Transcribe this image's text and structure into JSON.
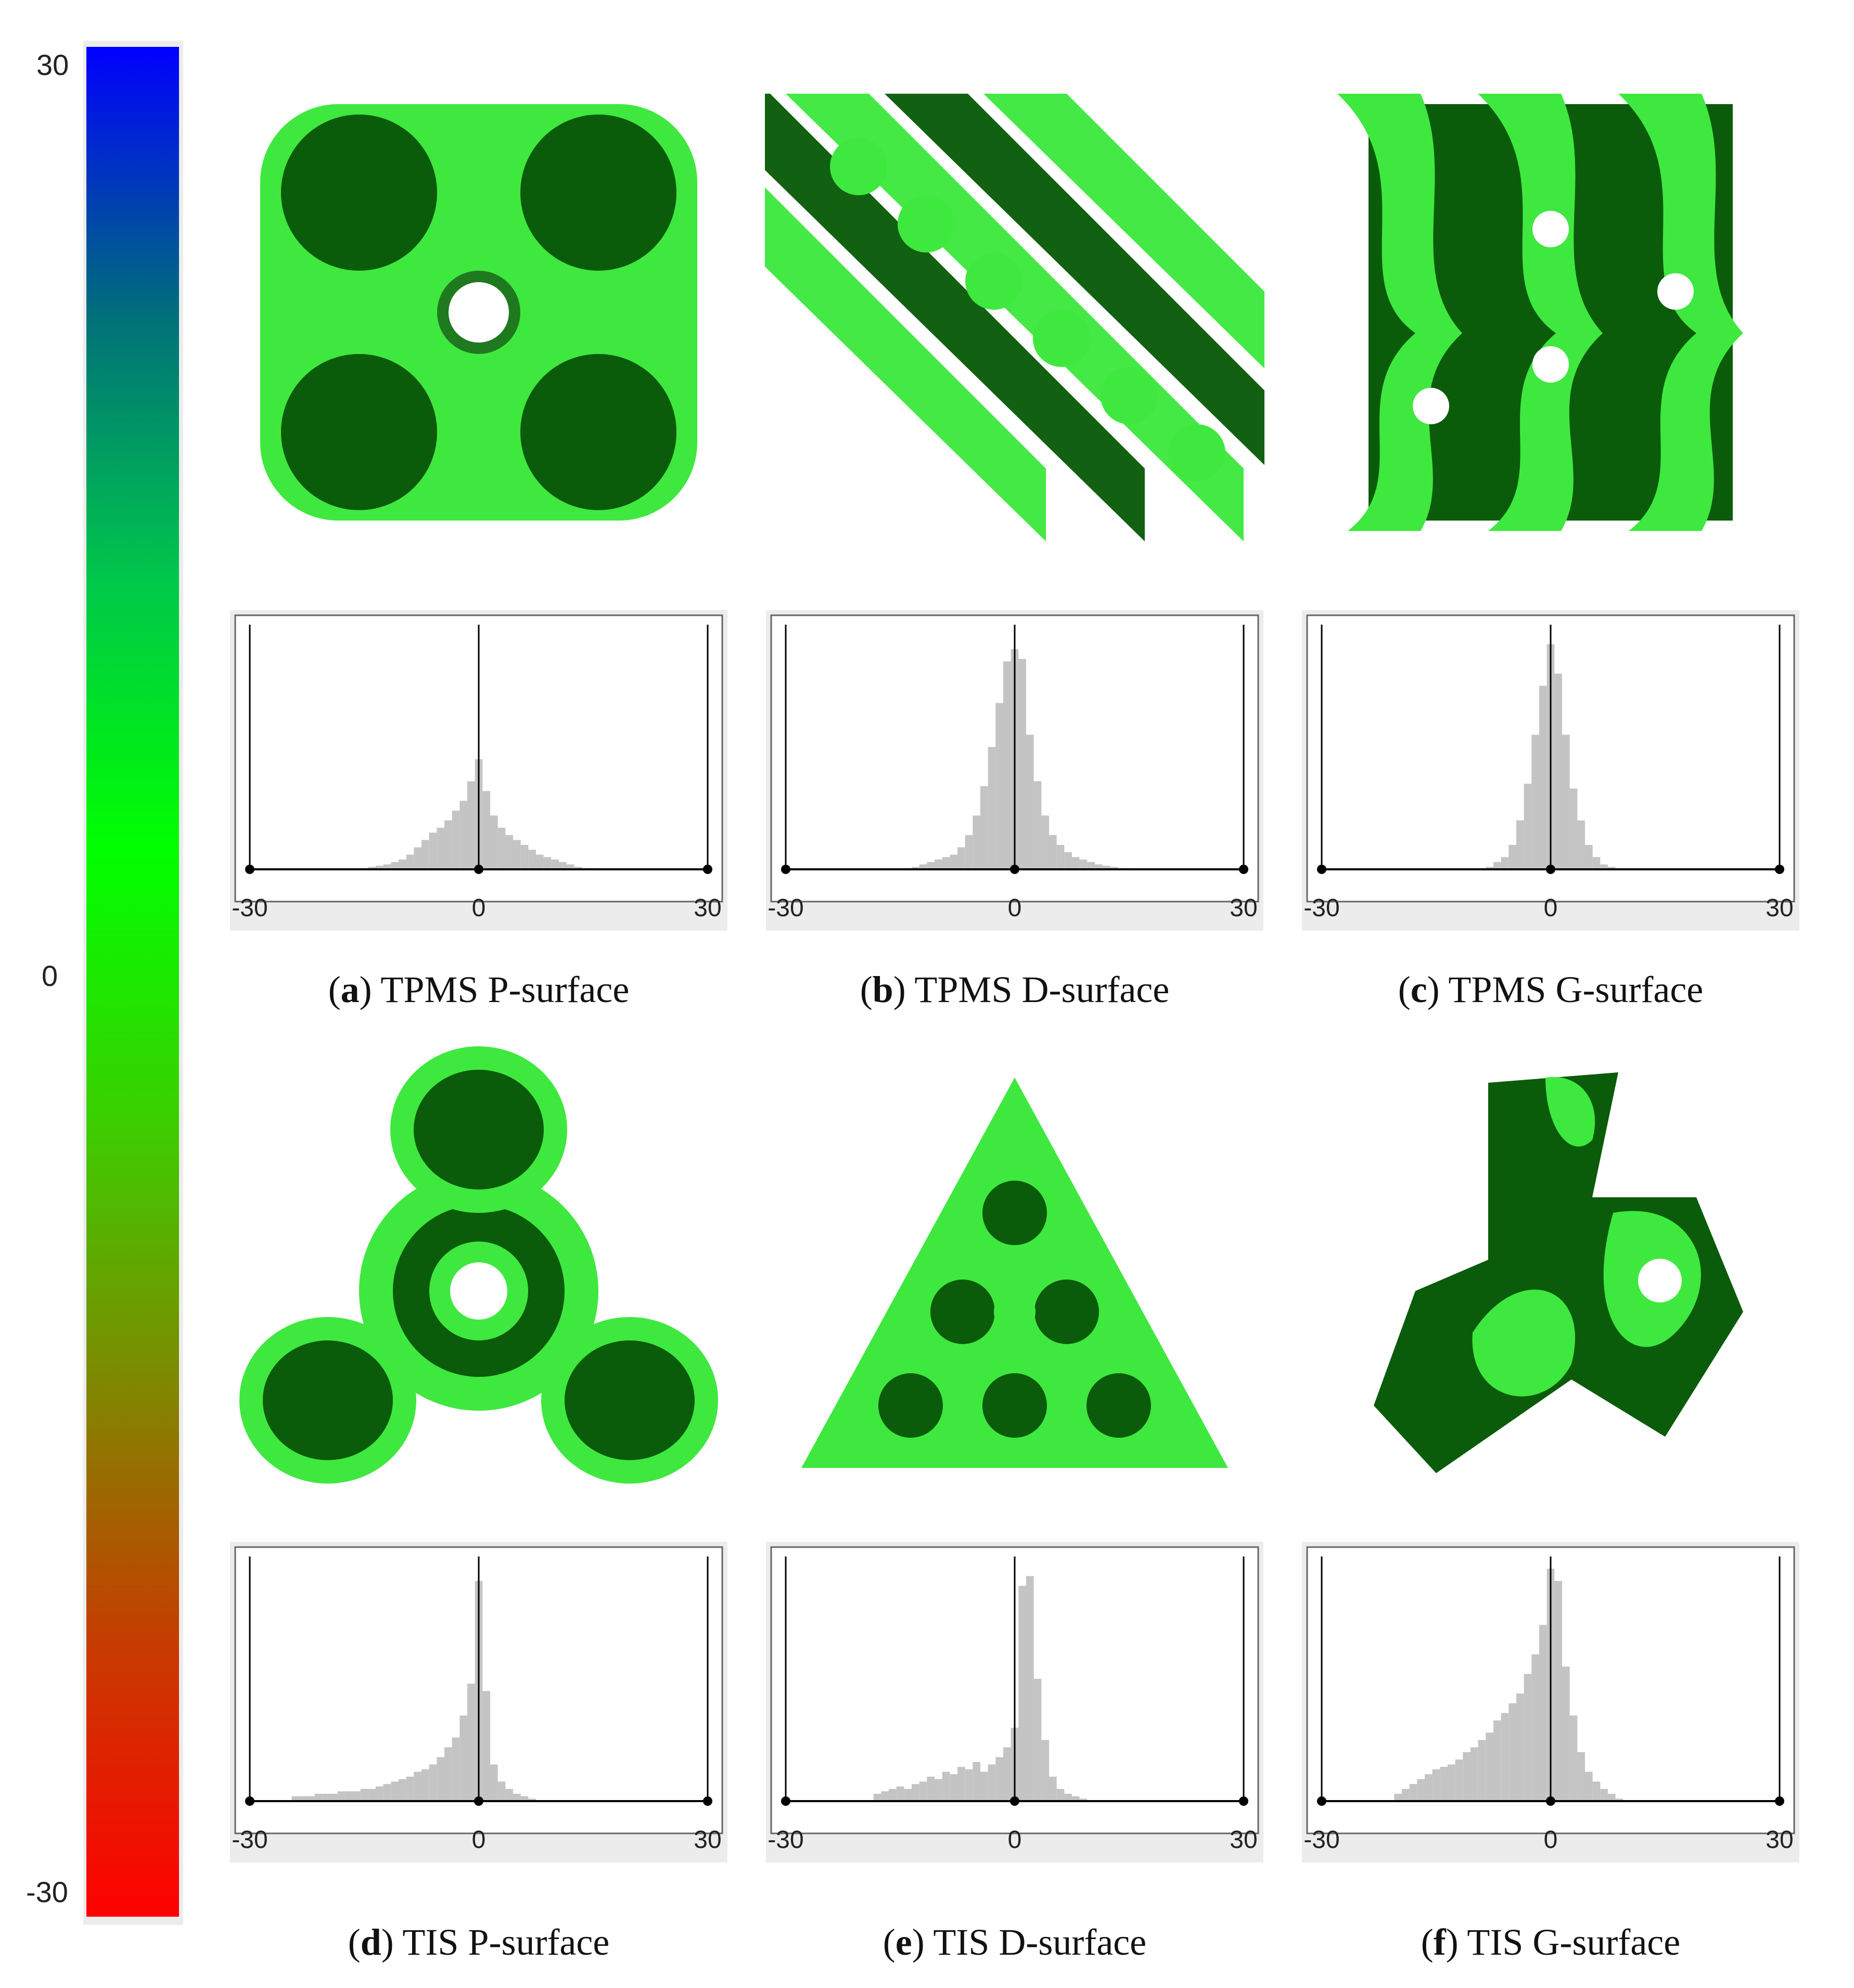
{
  "colorbar": {
    "labels": {
      "top": "30",
      "mid": "0",
      "bottom": "-30"
    },
    "stops": [
      "#0000ff",
      "#006f7a",
      "#00c84a",
      "#00ff00",
      "#3ad000",
      "#7f8800",
      "#c83a00",
      "#ff0000"
    ]
  },
  "colors": {
    "surface_dark": "#0a5c0a",
    "surface_light": "#3fe83f",
    "hist_bar": "#c4c4c4",
    "axis": "#000000"
  },
  "panels": [
    {
      "id": "a",
      "letter": "a",
      "label": "TPMS P-surface",
      "structure": "P",
      "row": 0,
      "col": 0
    },
    {
      "id": "b",
      "letter": "b",
      "label": "TPMS D-surface",
      "structure": "D",
      "row": 0,
      "col": 1
    },
    {
      "id": "c",
      "letter": "c",
      "label": "TPMS G-surface",
      "structure": "G",
      "row": 0,
      "col": 2
    },
    {
      "id": "d",
      "letter": "d",
      "label": "TIS P-surface",
      "structure": "TP",
      "row": 1,
      "col": 0
    },
    {
      "id": "e",
      "letter": "e",
      "label": "TIS D-surface",
      "structure": "TD",
      "row": 1,
      "col": 1
    },
    {
      "id": "f",
      "letter": "f",
      "label": "TIS G-surface",
      "structure": "TG",
      "row": 1,
      "col": 2
    }
  ],
  "chart_data": [
    {
      "type": "bar",
      "panel": "a",
      "xlim": [
        -30,
        30
      ],
      "ticks": [
        "-30",
        "0",
        "30"
      ],
      "bin_width": 1,
      "centers": [
        -15,
        -14,
        -13,
        -12,
        -11,
        -10,
        -9,
        -8,
        -7,
        -6,
        -5,
        -4,
        -3,
        -2,
        -1,
        0,
        1,
        2,
        3,
        4,
        5,
        6,
        7,
        8,
        9,
        10,
        11,
        12,
        13,
        14,
        15
      ],
      "values": [
        0.5,
        1,
        1.5,
        2,
        3,
        4,
        6,
        9,
        12,
        15,
        17,
        20,
        24,
        28,
        36,
        45,
        32,
        22,
        17,
        14,
        12,
        10,
        8,
        6,
        5,
        4,
        3,
        2,
        1,
        0.5,
        0.5
      ]
    },
    {
      "type": "bar",
      "panel": "b",
      "xlim": [
        -30,
        30
      ],
      "ticks": [
        "-30",
        "0",
        "30"
      ],
      "bin_width": 1,
      "centers": [
        -14,
        -13,
        -12,
        -11,
        -10,
        -9,
        -8,
        -7,
        -6,
        -5,
        -4,
        -3,
        -2,
        -1,
        0,
        1,
        2,
        3,
        4,
        5,
        6,
        7,
        8,
        9,
        10,
        11,
        12,
        13,
        14,
        15
      ],
      "values": [
        0.5,
        1,
        2,
        3,
        4,
        5,
        6,
        9,
        14,
        22,
        34,
        50,
        68,
        85,
        90,
        86,
        55,
        36,
        22,
        14,
        10,
        7,
        5,
        4,
        3,
        2,
        1.5,
        1,
        0.5,
        0.5
      ]
    },
    {
      "type": "bar",
      "panel": "c",
      "xlim": [
        -30,
        30
      ],
      "ticks": [
        "-30",
        "0",
        "30"
      ],
      "bin_width": 1,
      "centers": [
        -8,
        -7,
        -6,
        -5,
        -4,
        -3,
        -2,
        -1,
        0,
        1,
        2,
        3,
        4,
        5,
        6,
        7,
        8
      ],
      "values": [
        1,
        3,
        5,
        10,
        20,
        35,
        55,
        75,
        92,
        80,
        55,
        33,
        20,
        10,
        5,
        2,
        1
      ]
    },
    {
      "type": "bar",
      "panel": "d",
      "xlim": [
        -30,
        30
      ],
      "ticks": [
        "-30",
        "0",
        "30"
      ],
      "bin_width": 1,
      "centers": [
        -24,
        -23,
        -22,
        -21,
        -20,
        -19,
        -18,
        -17,
        -16,
        -15,
        -14,
        -13,
        -12,
        -11,
        -10,
        -9,
        -8,
        -7,
        -6,
        -5,
        -4,
        -3,
        -2,
        -1,
        0,
        1,
        2,
        3,
        4,
        5,
        6,
        7
      ],
      "values": [
        2,
        2,
        2,
        3,
        3,
        3,
        4,
        4,
        4,
        5,
        5,
        6,
        7,
        8,
        9,
        10,
        12,
        13,
        15,
        18,
        22,
        26,
        35,
        48,
        90,
        45,
        15,
        8,
        5,
        3,
        2,
        1
      ]
    },
    {
      "type": "bar",
      "panel": "e",
      "xlim": [
        -30,
        30
      ],
      "ticks": [
        "-30",
        "0",
        "30"
      ],
      "bin_width": 1,
      "centers": [
        -18,
        -17,
        -16,
        -15,
        -14,
        -13,
        -12,
        -11,
        -10,
        -9,
        -8,
        -7,
        -6,
        -5,
        -4,
        -3,
        -2,
        -1,
        0,
        1,
        2,
        3,
        4,
        5,
        6,
        7,
        8,
        9
      ],
      "values": [
        3,
        4,
        5,
        6,
        5,
        7,
        8,
        10,
        9,
        12,
        11,
        14,
        13,
        16,
        12,
        15,
        18,
        22,
        30,
        88,
        92,
        50,
        25,
        10,
        5,
        3,
        2,
        1
      ]
    },
    {
      "type": "bar",
      "panel": "f",
      "xlim": [
        -30,
        30
      ],
      "ticks": [
        "-30",
        "0",
        "30"
      ],
      "bin_width": 1,
      "centers": [
        -20,
        -19,
        -18,
        -17,
        -16,
        -15,
        -14,
        -13,
        -12,
        -11,
        -10,
        -9,
        -8,
        -7,
        -6,
        -5,
        -4,
        -3,
        -2,
        -1,
        0,
        1,
        2,
        3,
        4,
        5,
        6,
        7,
        8,
        9
      ],
      "values": [
        3,
        5,
        7,
        9,
        11,
        13,
        14,
        15,
        17,
        20,
        22,
        25,
        28,
        33,
        36,
        40,
        44,
        52,
        60,
        72,
        95,
        90,
        55,
        35,
        20,
        12,
        8,
        5,
        3,
        1
      ]
    }
  ]
}
